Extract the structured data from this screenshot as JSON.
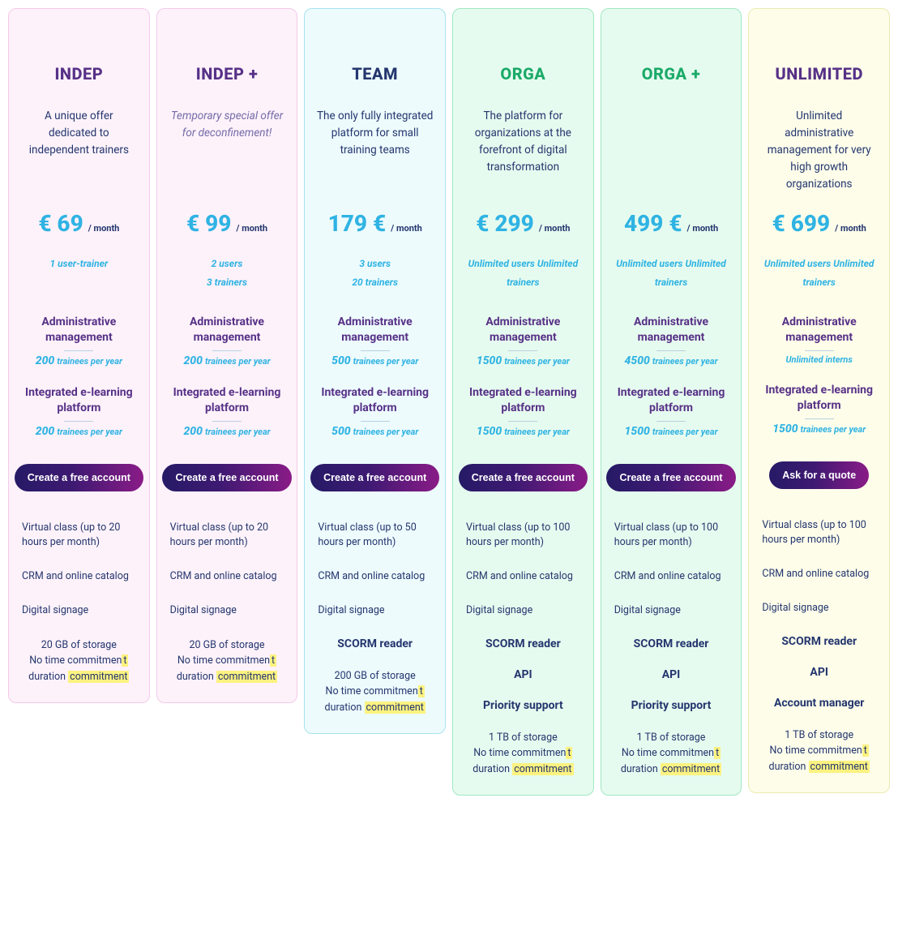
{
  "colors": {
    "price": "#2fb3e3",
    "price_unit": "#24366e",
    "price_sub": "#2fb3e3",
    "heading": "#573187",
    "section_sub": "#2fb3e3",
    "feature": "#24366e",
    "highlight_bg": "#fcf280"
  },
  "plans": [
    {
      "id": "indep",
      "title": "INDEP",
      "title_color": "#573187",
      "card_bg": "#fdf2fa",
      "card_border": "#f4c9ea",
      "desc": "A unique offer dedicated to independent trainers",
      "desc_color": "#24366e",
      "desc_italic": false,
      "price": "€ 69",
      "price_unit": "/ month",
      "price_sub_line1": "1 user-trainer",
      "price_sub_line2": "",
      "admin_heading": "Administrative management",
      "admin_sub_num": "200",
      "admin_sub_text": "trainees per year",
      "elearn_heading": "Integrated e-learning platform",
      "elearn_sub_num": "200",
      "elearn_sub_text": "trainees per year",
      "cta": "Create a free account",
      "features_plain": [
        "Virtual class (up to 20 hours per month)",
        "CRM and online catalog",
        "Digital signage"
      ],
      "features_bold": [],
      "storage": "20 GB of storage",
      "commitment_prefix": "No time commitmen",
      "commitment_hl1": "t ",
      "commitment_mid": "duration ",
      "commitment_hl2": "commitment"
    },
    {
      "id": "indep-plus",
      "title": "INDEP +",
      "title_color": "#573187",
      "card_bg": "#fdf2fa",
      "card_border": "#f4c9ea",
      "desc": "Temporary special offer for deconfinement!",
      "desc_color": "#746aa7",
      "desc_italic": true,
      "price": "€ 99",
      "price_unit": "/ month",
      "price_sub_line1": "2 users",
      "price_sub_line2": "3 trainers",
      "admin_heading": "Administrative management",
      "admin_sub_num": "200",
      "admin_sub_text": "trainees per year",
      "elearn_heading": "Integrated e-learning platform",
      "elearn_sub_num": "200",
      "elearn_sub_text": "trainees per year",
      "cta": "Create a free account",
      "features_plain": [
        "Virtual class (up to 20 hours per month)",
        "CRM and online catalog",
        "Digital signage"
      ],
      "features_bold": [],
      "storage": "20 GB of storage",
      "commitment_prefix": "No time commitmen",
      "commitment_hl1": "t ",
      "commitment_mid": "duration ",
      "commitment_hl2": "commitment"
    },
    {
      "id": "team",
      "title": "TEAM",
      "title_color": "#24366e",
      "card_bg": "#edfbfd",
      "card_border": "#a8e3ee",
      "desc": "The only fully integrated platform for small training teams",
      "desc_color": "#24366e",
      "desc_italic": false,
      "price": "179 €",
      "price_unit": "/ month",
      "price_sub_line1": "3 users",
      "price_sub_line2": "20 trainers",
      "admin_heading": "Administrative management",
      "admin_sub_num": "500",
      "admin_sub_text": "trainees per year",
      "elearn_heading": "Integrated e-learning platform",
      "elearn_sub_num": "500",
      "elearn_sub_text": "trainees per year",
      "cta": "Create a free account",
      "features_plain": [
        "Virtual class (up to 50 hours per month)",
        "CRM and online catalog",
        "Digital signage"
      ],
      "features_bold": [
        "SCORM reader"
      ],
      "storage": "200 GB of storage",
      "commitment_prefix": "No time commitmen",
      "commitment_hl1": "t ",
      "commitment_mid": "duration ",
      "commitment_hl2": "commitment"
    },
    {
      "id": "orga",
      "title": "ORGA",
      "title_color": "#1aaa68",
      "card_bg": "#e6fbef",
      "card_border": "#9fe9c2",
      "desc": "The platform for organizations at the forefront of digital transformation",
      "desc_color": "#24366e",
      "desc_italic": false,
      "price": "€ 299",
      "price_unit": "/ month",
      "price_sub_line1": "Unlimited users Unlimited trainers",
      "price_sub_line2": "",
      "admin_heading": "Administrative management",
      "admin_sub_num": "1500",
      "admin_sub_text": "trainees per year",
      "elearn_heading": "Integrated e-learning platform",
      "elearn_sub_num": "1500",
      "elearn_sub_text": "trainees per year",
      "cta": "Create a free account",
      "features_plain": [
        "Virtual class (up to 100 hours per month)",
        "CRM and online catalog",
        "Digital signage"
      ],
      "features_bold": [
        "SCORM reader",
        "API",
        "Priority support"
      ],
      "storage": "1 TB of storage",
      "commitment_prefix": "No time commitmen",
      "commitment_hl1": "t ",
      "commitment_mid": "duration ",
      "commitment_hl2": "commitment"
    },
    {
      "id": "orga-plus",
      "title": "ORGA +",
      "title_color": "#1aaa68",
      "card_bg": "#e6fbef",
      "card_border": "#9fe9c2",
      "desc": "",
      "desc_color": "#24366e",
      "desc_italic": false,
      "price": "499 €",
      "price_unit": "/ month",
      "price_sub_line1": "Unlimited users Unlimited trainers",
      "price_sub_line2": "",
      "admin_heading": "Administrative management",
      "admin_sub_num": "4500",
      "admin_sub_text": "trainees per year",
      "elearn_heading": "Integrated e-learning platform",
      "elearn_sub_num": "1500",
      "elearn_sub_text": "trainees per year",
      "cta": "Create a free account",
      "features_plain": [
        "Virtual class (up to 100 hours per month)",
        "CRM and online catalog",
        "Digital signage"
      ],
      "features_bold": [
        "SCORM reader",
        "API",
        "Priority support"
      ],
      "storage": "1 TB of storage",
      "commitment_prefix": "No time commitmen",
      "commitment_hl1": "t ",
      "commitment_mid": "duration ",
      "commitment_hl2": "commitment"
    },
    {
      "id": "unlimited",
      "title": "UNLIMITED",
      "title_color": "#573187",
      "card_bg": "#fdfdea",
      "card_border": "#ecebb0",
      "desc": "Unlimited administrative management for very high growth organizations",
      "desc_color": "#24366e",
      "desc_italic": false,
      "price": "€ 699",
      "price_unit": "/ month",
      "price_sub_line1": "Unlimited users Unlimited trainers",
      "price_sub_line2": "",
      "admin_heading": "Administrative management",
      "admin_sub_num": "",
      "admin_sub_text": "Unlimited interns",
      "elearn_heading": "Integrated e-learning platform",
      "elearn_sub_num": "1500",
      "elearn_sub_text": "trainees per year",
      "cta": "Ask for a quote",
      "features_plain": [
        "Virtual class (up to 100 hours per month)",
        "CRM and online catalog",
        "Digital signage"
      ],
      "features_bold": [
        "SCORM reader",
        "API",
        "Account manager"
      ],
      "storage": "1 TB of storage",
      "commitment_prefix": "No time commitmen",
      "commitment_hl1": "t ",
      "commitment_mid": "duration ",
      "commitment_hl2": "commitment"
    }
  ]
}
